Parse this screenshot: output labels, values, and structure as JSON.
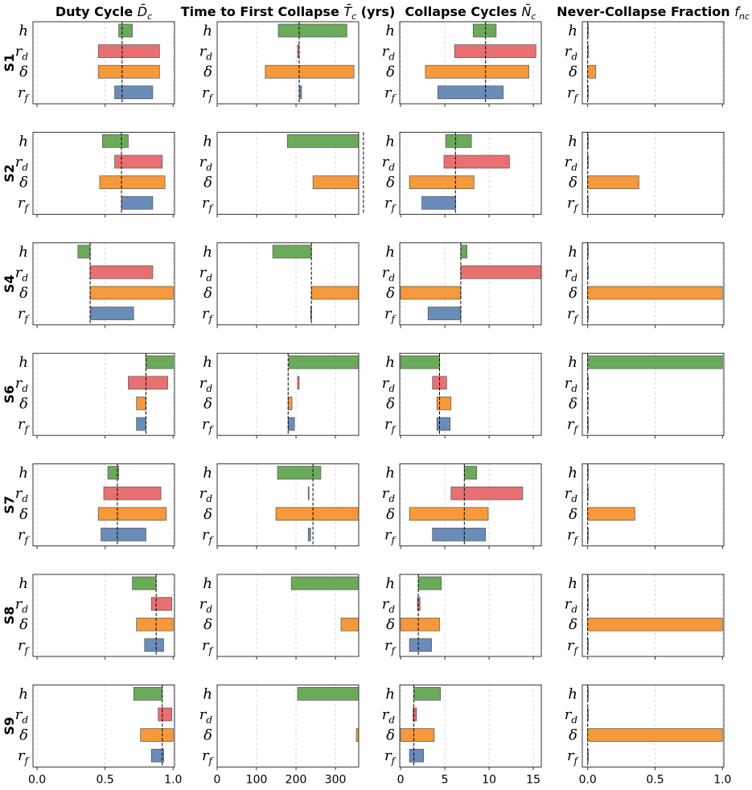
{
  "chart_data": {
    "type": "range_bar",
    "parameters": [
      {
        "symbol": "h",
        "color": "#6aaa5a"
      },
      {
        "symbol": "r",
        "sub": "d",
        "color": "#e87070"
      },
      {
        "symbol": "δ",
        "color": "#f5993a"
      },
      {
        "symbol": "r",
        "sub": "f",
        "color": "#6a8cb8"
      }
    ],
    "rows": [
      "S1",
      "S2",
      "S4",
      "S6",
      "S7",
      "S8",
      "S9"
    ],
    "grid": true,
    "columns": [
      {
        "title": "Duty Cycle",
        "symbol": "D̄",
        "sub": "c",
        "xlim": [
          -0.03,
          1.01
        ],
        "xticks": [
          {
            "value": 0,
            "label": "0.0"
          },
          {
            "value": 0.5,
            "label": "0.5"
          },
          {
            "value": 1,
            "label": "1.0"
          }
        ]
      },
      {
        "title": "Time to First Collapse",
        "symbol": "T̄",
        "sub": "c",
        "unit": "(yrs)",
        "xlim": [
          0,
          359
        ],
        "xticks": [
          0,
          100,
          200,
          300
        ]
      },
      {
        "title": "Collapse Cycles",
        "symbol": "N̄",
        "sub": "c",
        "xlim": [
          -0.1,
          15.9
        ],
        "xticks": [
          0,
          5,
          10,
          15
        ]
      },
      {
        "title": "Never-Collapse Fraction",
        "symbol": "f",
        "sub": "nc",
        "xlim": [
          -0.04,
          1.01
        ],
        "xticks": [
          {
            "value": 0,
            "label": "0.0"
          },
          {
            "value": 0.5,
            "label": "0.5"
          },
          {
            "value": 1,
            "label": "1.0"
          }
        ]
      }
    ],
    "panels": [
      [
        {
          "baseline": 0.625,
          "low": [
            0.6,
            0.45,
            0.45,
            0.57
          ],
          "high": [
            0.7,
            0.9,
            0.9,
            0.85
          ]
        },
        {
          "baseline": 208,
          "low": [
            155,
            204,
            122,
            208
          ],
          "high": [
            329,
            208,
            347,
            214
          ]
        },
        {
          "baseline": 9.6,
          "low": [
            8.2,
            6.1,
            2.8,
            4.2
          ],
          "high": [
            10.8,
            15.3,
            14.5,
            11.6
          ]
        },
        {
          "baseline": 0,
          "low": [
            0,
            0,
            0,
            0
          ],
          "high": [
            0,
            0,
            0.06,
            0
          ]
        }
      ],
      [
        {
          "baseline": 0.62,
          "low": [
            0.48,
            0.57,
            0.46,
            0.62
          ],
          "high": [
            0.67,
            0.92,
            0.94,
            0.85
          ]
        },
        {
          "baseline": 371,
          "low": [
            178,
            null,
            243,
            null
          ],
          "high": [
            380,
            null,
            380,
            null
          ]
        },
        {
          "baseline": 6.2,
          "low": [
            5.1,
            4.9,
            1.0,
            2.4
          ],
          "high": [
            8.0,
            12.3,
            8.3,
            6.2
          ]
        },
        {
          "baseline": 0,
          "low": [
            0,
            0,
            0,
            0
          ],
          "high": [
            0,
            0,
            0.38,
            0
          ]
        }
      ],
      [
        {
          "baseline": 0.39,
          "low": [
            0.3,
            0.39,
            0.39,
            0.39
          ],
          "high": [
            0.39,
            0.85,
            1.0,
            0.71
          ]
        },
        {
          "baseline": 239,
          "low": [
            141,
            null,
            239,
            237
          ],
          "high": [
            239,
            null,
            380,
            239
          ]
        },
        {
          "baseline": 6.8,
          "low": [
            6.8,
            6.8,
            0,
            3.1
          ],
          "high": [
            7.5,
            16,
            6.8,
            6.8
          ]
        },
        {
          "baseline": 0,
          "low": [
            0,
            0,
            0,
            0
          ],
          "high": [
            0,
            0,
            1.0,
            0
          ]
        }
      ],
      [
        {
          "baseline": 0.8,
          "low": [
            0.8,
            0.67,
            0.73,
            0.73
          ],
          "high": [
            1.0,
            0.96,
            0.8,
            0.8
          ]
        },
        {
          "baseline": 180,
          "low": [
            182,
            204,
            180,
            180
          ],
          "high": [
            380,
            208,
            190,
            196
          ]
        },
        {
          "baseline": 4.4,
          "low": [
            0,
            3.6,
            4.1,
            4.1
          ],
          "high": [
            4.4,
            5.2,
            5.7,
            5.6
          ]
        },
        {
          "baseline": 0,
          "low": [
            0,
            0,
            0,
            0
          ],
          "high": [
            1.0,
            0.005,
            0.003,
            0.005
          ]
        }
      ],
      [
        {
          "baseline": 0.59,
          "low": [
            0.52,
            0.49,
            0.45,
            0.47
          ],
          "high": [
            0.6,
            0.91,
            0.95,
            0.8
          ]
        },
        {
          "baseline": 243,
          "low": [
            153,
            231,
            149,
            231
          ],
          "high": [
            263,
            233,
            380,
            237
          ]
        },
        {
          "baseline": 7.2,
          "low": [
            7.2,
            5.7,
            1.0,
            3.6
          ],
          "high": [
            8.6,
            13.8,
            9.9,
            9.6
          ]
        },
        {
          "baseline": 0,
          "low": [
            0,
            0,
            0,
            0
          ],
          "high": [
            0,
            0,
            0.35,
            0
          ]
        }
      ],
      [
        {
          "baseline": 0.875,
          "low": [
            0.7,
            0.84,
            0.73,
            0.79
          ],
          "high": [
            0.875,
            0.99,
            1.0,
            0.93
          ]
        },
        {
          "baseline": null,
          "low": [
            188,
            null,
            314,
            null
          ],
          "high": [
            380,
            null,
            380,
            null
          ]
        },
        {
          "baseline": 2.0,
          "low": [
            2.0,
            1.9,
            0,
            1.0
          ],
          "high": [
            4.6,
            2.2,
            4.4,
            3.5
          ]
        },
        {
          "baseline": 0,
          "low": [
            0,
            0,
            0,
            0
          ],
          "high": [
            0,
            0,
            1.0,
            0
          ]
        }
      ],
      [
        {
          "baseline": 0.92,
          "low": [
            0.71,
            0.89,
            0.76,
            0.84
          ],
          "high": [
            0.92,
            0.99,
            1.0,
            0.93
          ]
        },
        {
          "baseline": null,
          "low": [
            204,
            null,
            353,
            null
          ],
          "high": [
            380,
            null,
            380,
            null
          ]
        },
        {
          "baseline": 1.5,
          "low": [
            1.5,
            1.4,
            0,
            1.0
          ],
          "high": [
            4.5,
            1.8,
            3.8,
            2.6
          ]
        },
        {
          "baseline": 0,
          "low": [
            0,
            0,
            0,
            0
          ],
          "high": [
            0,
            0,
            1.0,
            0
          ]
        }
      ]
    ]
  }
}
